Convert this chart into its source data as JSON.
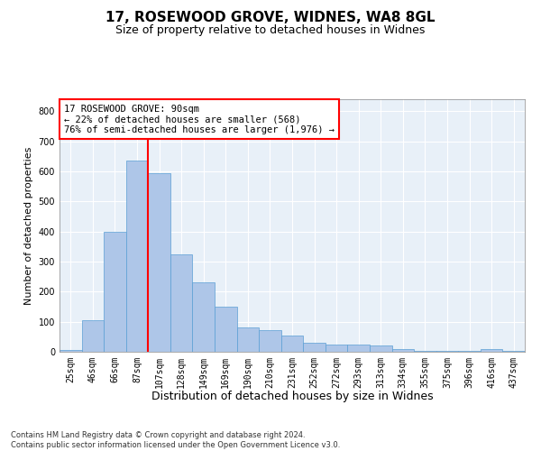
{
  "title1": "17, ROSEWOOD GROVE, WIDNES, WA8 8GL",
  "title2": "Size of property relative to detached houses in Widnes",
  "xlabel": "Distribution of detached houses by size in Widnes",
  "ylabel": "Number of detached properties",
  "footnote": "Contains HM Land Registry data © Crown copyright and database right 2024.\nContains public sector information licensed under the Open Government Licence v3.0.",
  "bar_labels": [
    "25sqm",
    "46sqm",
    "66sqm",
    "87sqm",
    "107sqm",
    "128sqm",
    "149sqm",
    "169sqm",
    "190sqm",
    "210sqm",
    "231sqm",
    "252sqm",
    "272sqm",
    "293sqm",
    "313sqm",
    "334sqm",
    "355sqm",
    "375sqm",
    "396sqm",
    "416sqm",
    "437sqm"
  ],
  "bar_values": [
    5,
    105,
    400,
    635,
    595,
    325,
    230,
    150,
    80,
    72,
    55,
    30,
    25,
    25,
    20,
    10,
    3,
    3,
    3,
    10,
    3
  ],
  "bar_color": "#aec6e8",
  "bar_edge_color": "#5a9fd4",
  "vline_color": "red",
  "annotation_text": "17 ROSEWOOD GROVE: 90sqm\n← 22% of detached houses are smaller (568)\n76% of semi-detached houses are larger (1,976) →",
  "annotation_box_color": "white",
  "annotation_box_edge": "red",
  "ylim": [
    0,
    840
  ],
  "yticks": [
    0,
    100,
    200,
    300,
    400,
    500,
    600,
    700,
    800
  ],
  "background_color": "#e8f0f8",
  "grid_color": "white",
  "title1_fontsize": 11,
  "title2_fontsize": 9,
  "xlabel_fontsize": 9,
  "ylabel_fontsize": 8,
  "tick_fontsize": 7,
  "annotation_fontsize": 7.5
}
